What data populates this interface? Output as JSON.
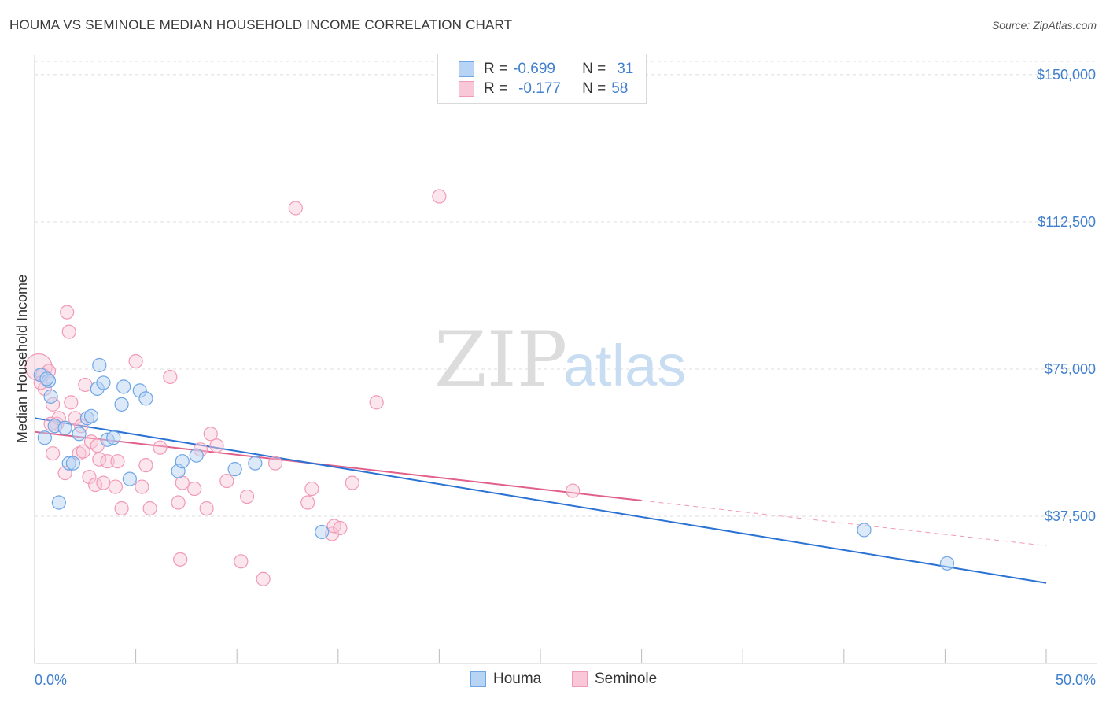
{
  "title": "HOUMA VS SEMINOLE MEDIAN HOUSEHOLD INCOME CORRELATION CHART",
  "source": "Source: ZipAtlas.com",
  "watermark": {
    "zip": "ZIP",
    "atlas": "atlas"
  },
  "colors": {
    "houma": "#6ea6e6",
    "houma_fill": "#b8d4f4",
    "houma_line": "#2a72d4",
    "seminole": "#f19ab6",
    "seminole_fill": "#f9c8d8",
    "seminole_line": "#e0608a",
    "tick_text": "#3f7fce",
    "grid": "#dddddd"
  },
  "legend": {
    "rows": [
      {
        "r_label": "R =",
        "r_value": "-0.699",
        "n_label": "N =",
        "n_value": "31"
      },
      {
        "r_label": "R =",
        "r_value": "-0.177",
        "n_label": "N =",
        "n_value": "58"
      }
    ]
  },
  "chart_data": {
    "type": "scatter",
    "title": "HOUMA VS SEMINOLE MEDIAN HOUSEHOLD INCOME CORRELATION CHART",
    "xlabel": "",
    "ylabel": "Median Household Income",
    "xlim": [
      0,
      50
    ],
    "ylim": [
      0,
      155000
    ],
    "x_tick_labels": [
      "0.0%",
      "50.0%"
    ],
    "y_ticks": [
      37500,
      75000,
      112500,
      150000
    ],
    "y_tick_labels": [
      "$37,500",
      "$75,000",
      "$112,500",
      "$150,000"
    ],
    "grid": true,
    "legend_position": "top-center",
    "series": [
      {
        "name": "Houma",
        "points": [
          [
            0.3,
            73500
          ],
          [
            0.5,
            57500
          ],
          [
            0.7,
            72000
          ],
          [
            0.8,
            68000
          ],
          [
            1.0,
            60500
          ],
          [
            1.2,
            41000
          ],
          [
            1.5,
            60000
          ],
          [
            1.7,
            51000
          ],
          [
            1.9,
            51000
          ],
          [
            2.2,
            58500
          ],
          [
            2.6,
            62500
          ],
          [
            2.8,
            63000
          ],
          [
            3.1,
            70000
          ],
          [
            3.2,
            76000
          ],
          [
            3.4,
            71500
          ],
          [
            3.6,
            57000
          ],
          [
            3.9,
            57500
          ],
          [
            4.3,
            66000
          ],
          [
            4.4,
            70500
          ],
          [
            4.7,
            47000
          ],
          [
            5.2,
            69500
          ],
          [
            5.5,
            67500
          ],
          [
            7.1,
            49000
          ],
          [
            7.3,
            51500
          ],
          [
            8.0,
            53000
          ],
          [
            9.9,
            49500
          ],
          [
            10.9,
            51000
          ],
          [
            14.2,
            33500
          ],
          [
            41.0,
            34000
          ],
          [
            45.1,
            25500
          ],
          [
            0.6,
            72500
          ]
        ],
        "trend": {
          "x": [
            0,
            50
          ],
          "y": [
            62500,
            20500
          ]
        }
      },
      {
        "name": "Seminole",
        "points": [
          [
            0.2,
            75500
          ],
          [
            0.4,
            73500
          ],
          [
            0.5,
            70000
          ],
          [
            0.7,
            74500
          ],
          [
            0.9,
            66000
          ],
          [
            0.9,
            53500
          ],
          [
            1.1,
            61000
          ],
          [
            1.2,
            62500
          ],
          [
            1.5,
            48500
          ],
          [
            1.6,
            89500
          ],
          [
            1.7,
            84500
          ],
          [
            1.8,
            66500
          ],
          [
            2.0,
            62500
          ],
          [
            2.2,
            53500
          ],
          [
            2.3,
            60500
          ],
          [
            2.4,
            54000
          ],
          [
            2.5,
            71000
          ],
          [
            2.7,
            47500
          ],
          [
            2.8,
            56500
          ],
          [
            3.0,
            45500
          ],
          [
            3.1,
            55500
          ],
          [
            3.2,
            52000
          ],
          [
            3.4,
            46000
          ],
          [
            3.6,
            51500
          ],
          [
            4.0,
            45000
          ],
          [
            4.1,
            51500
          ],
          [
            4.3,
            39500
          ],
          [
            5.0,
            77000
          ],
          [
            5.3,
            45000
          ],
          [
            5.5,
            50500
          ],
          [
            5.7,
            39500
          ],
          [
            6.2,
            55000
          ],
          [
            6.7,
            73000
          ],
          [
            7.1,
            41000
          ],
          [
            7.2,
            26500
          ],
          [
            7.3,
            46000
          ],
          [
            7.9,
            44500
          ],
          [
            8.2,
            54500
          ],
          [
            8.5,
            39500
          ],
          [
            8.7,
            58500
          ],
          [
            9.0,
            55500
          ],
          [
            9.5,
            46500
          ],
          [
            10.2,
            26000
          ],
          [
            10.5,
            42500
          ],
          [
            11.3,
            21500
          ],
          [
            11.9,
            51000
          ],
          [
            12.9,
            116000
          ],
          [
            13.5,
            41000
          ],
          [
            13.7,
            44500
          ],
          [
            14.7,
            33000
          ],
          [
            14.8,
            35000
          ],
          [
            15.1,
            34500
          ],
          [
            15.7,
            46000
          ],
          [
            16.9,
            66500
          ],
          [
            20.0,
            119000
          ],
          [
            26.6,
            44000
          ],
          [
            0.3,
            71500
          ],
          [
            0.8,
            61000
          ]
        ],
        "trend": {
          "x": [
            0,
            30
          ],
          "y": [
            59000,
            41500
          ]
        },
        "trend_dashed": {
          "x": [
            30,
            50
          ],
          "y": [
            41500,
            30000
          ]
        }
      }
    ]
  },
  "bottom_legend": {
    "houma": "Houma",
    "seminole": "Seminole"
  }
}
